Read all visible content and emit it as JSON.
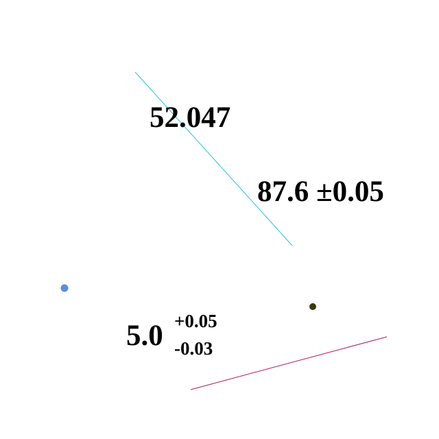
{
  "dimensions": {
    "basic": {
      "value": "52.047"
    },
    "symmetric": {
      "value": "87.6",
      "tolerance": "±0.05"
    },
    "asymmetric": {
      "value": "5.0",
      "upper": "+0.05",
      "lower": "-0.03"
    }
  },
  "colors": {
    "cyan_line": "#22c4e6",
    "crimson_line": "#b0175a",
    "blue_point": "#5b8fd6",
    "dark_point": "#3a3a12",
    "text": "#000000"
  }
}
